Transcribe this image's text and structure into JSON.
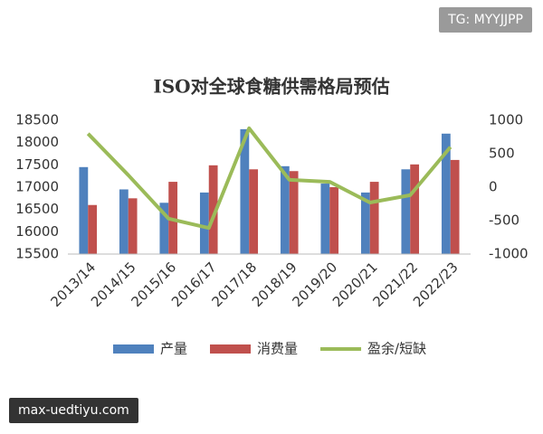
{
  "chart_data": {
    "type": "bar",
    "title": "ISO对全球食糖供需格局预估",
    "categories": [
      "2013/14",
      "2014/15",
      "2015/16",
      "2016/17",
      "2017/18",
      "2018/19",
      "2019/20",
      "2020/21",
      "2021/22",
      "2022/23"
    ],
    "series": [
      {
        "name": "产量",
        "color": "#4f81bd",
        "values": [
          17450,
          16950,
          16650,
          16880,
          18300,
          17470,
          17080,
          16880,
          17400,
          18200
        ]
      },
      {
        "name": "消费量",
        "color": "#c0504d",
        "values": [
          16600,
          16750,
          17120,
          17490,
          17400,
          17360,
          17000,
          17120,
          17510,
          17610
        ]
      },
      {
        "name": "盈余/短缺",
        "type": "line",
        "axis": "y2",
        "color": "#9bbb59",
        "values": [
          800,
          180,
          -470,
          -610,
          880,
          110,
          80,
          -230,
          -120,
          600
        ]
      }
    ],
    "ylim": [
      15500,
      18500
    ],
    "yticks": [
      15500,
      16000,
      16500,
      17000,
      17500,
      18000,
      18500
    ],
    "y2lim": [
      -1000,
      1000
    ],
    "y2ticks": [
      -1000,
      -500,
      0,
      500,
      1000
    ],
    "grid": false
  },
  "watermarks": [
    "TG: MYYJJPP",
    "max-uedtiyu.com"
  ]
}
